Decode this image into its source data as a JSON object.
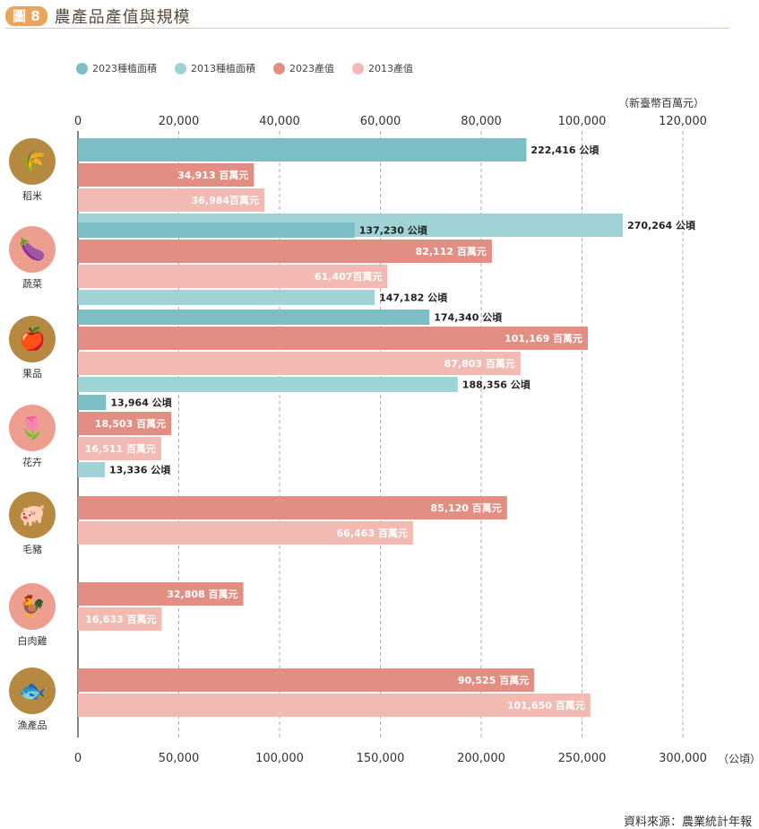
{
  "header": {
    "badge": "圖 8",
    "title": "農產品產值與規模"
  },
  "legend": [
    {
      "label": "2023種植面積",
      "color": "#7bbec3"
    },
    {
      "label": "2013種植面積",
      "color": "#9fd3d6"
    },
    {
      "label": "2023產值",
      "color": "#e28e82"
    },
    {
      "label": "2013產值",
      "color": "#f2bab2"
    }
  ],
  "unit_top": "（新臺幣百萬元）",
  "unit_bottom": "（公頃）",
  "source": "資料來源：農業統計年報",
  "categories": [
    {
      "label": "稻米",
      "icon": "rice-icon",
      "color": "#b58a40"
    },
    {
      "label": "蔬菜",
      "icon": "eggplant-icon",
      "color": "#ee9e8f"
    },
    {
      "label": "果品",
      "icon": "apple-icon",
      "color": "#b58a40"
    },
    {
      "label": "花卉",
      "icon": "tulip-icon",
      "color": "#ee9e8f"
    },
    {
      "label": "毛豬",
      "icon": "pig-icon",
      "color": "#b58a40"
    },
    {
      "label": "白肉雞",
      "icon": "chicken-icon",
      "color": "#ee9e8f"
    },
    {
      "label": "漁產品",
      "icon": "fish-icon",
      "color": "#b58a40"
    }
  ],
  "chart_data": {
    "type": "bar",
    "orientation": "horizontal",
    "top_axis": {
      "label": "（新臺幣百萬元）",
      "range": [
        0,
        120000
      ],
      "ticks": [
        "0",
        "20,000",
        "40,000",
        "60,000",
        "80,000",
        "100,000",
        "120,000"
      ]
    },
    "bottom_axis": {
      "label": "（公頃）",
      "range": [
        0,
        300000
      ],
      "ticks": [
        "0",
        "50,000",
        "100,000",
        "150,000",
        "200,000",
        "250,000",
        "300,000"
      ]
    },
    "grid": true,
    "groups": [
      {
        "category": "稻米",
        "bars": [
          {
            "series": "2023種植面積",
            "value": 222416,
            "label": "222,416 公頃",
            "axis": "ha"
          },
          {
            "series": "2023產值",
            "value": 34913,
            "label": "34,913 百萬元",
            "axis": "ntd"
          },
          {
            "series": "2013產值",
            "value": 36984,
            "label": "36,984百萬元",
            "axis": "ntd"
          },
          {
            "series": "2013種植面積",
            "value": 270264,
            "label": "270,264 公頃",
            "axis": "ha"
          }
        ]
      },
      {
        "category": "蔬菜",
        "bars": [
          {
            "series": "2023種植面積",
            "value": 137230,
            "label": "137,230 公頃",
            "axis": "ha"
          },
          {
            "series": "2023產值",
            "value": 82112,
            "label": "82,112 百萬元",
            "axis": "ntd"
          },
          {
            "series": "2013產值",
            "value": 61407,
            "label": "61,407百萬元",
            "axis": "ntd"
          },
          {
            "series": "2013種植面積",
            "value": 147182,
            "label": "147,182 公頃",
            "axis": "ha"
          }
        ]
      },
      {
        "category": "果品",
        "bars": [
          {
            "series": "2023種植面積",
            "value": 174340,
            "label": "174,340 公頃",
            "axis": "ha"
          },
          {
            "series": "2023產值",
            "value": 101169,
            "label": "101,169 百萬元",
            "axis": "ntd"
          },
          {
            "series": "2013產值",
            "value": 87803,
            "label": "87,803 百萬元",
            "axis": "ntd"
          },
          {
            "series": "2013種植面積",
            "value": 188356,
            "label": "188,356 公頃",
            "axis": "ha"
          }
        ]
      },
      {
        "category": "花卉",
        "bars": [
          {
            "series": "2023種植面積",
            "value": 13964,
            "label": "13,964 公頃",
            "axis": "ha"
          },
          {
            "series": "2023產值",
            "value": 18503,
            "label": "18,503 百萬元",
            "axis": "ntd"
          },
          {
            "series": "2013產值",
            "value": 16511,
            "label": "16,511 百萬元",
            "axis": "ntd"
          },
          {
            "series": "2013種植面積",
            "value": 13336,
            "label": "13,336 公頃",
            "axis": "ha"
          }
        ]
      },
      {
        "category": "毛豬",
        "bars": [
          {
            "series": "2023產值",
            "value": 85120,
            "label": "85,120 百萬元",
            "axis": "ntd"
          },
          {
            "series": "2013產值",
            "value": 66463,
            "label": "66,463 百萬元",
            "axis": "ntd"
          }
        ]
      },
      {
        "category": "白肉雞",
        "bars": [
          {
            "series": "2023產值",
            "value": 32808,
            "label": "32,808 百萬元",
            "axis": "ntd"
          },
          {
            "series": "2013產值",
            "value": 16633,
            "label": "16,633 百萬元",
            "axis": "ntd"
          }
        ]
      },
      {
        "category": "漁產品",
        "bars": [
          {
            "series": "2023產值",
            "value": 90525,
            "label": "90,525 百萬元",
            "axis": "ntd"
          },
          {
            "series": "2013產值",
            "value": 101650,
            "label": "101,650 百萬元",
            "axis": "ntd"
          }
        ]
      }
    ]
  }
}
